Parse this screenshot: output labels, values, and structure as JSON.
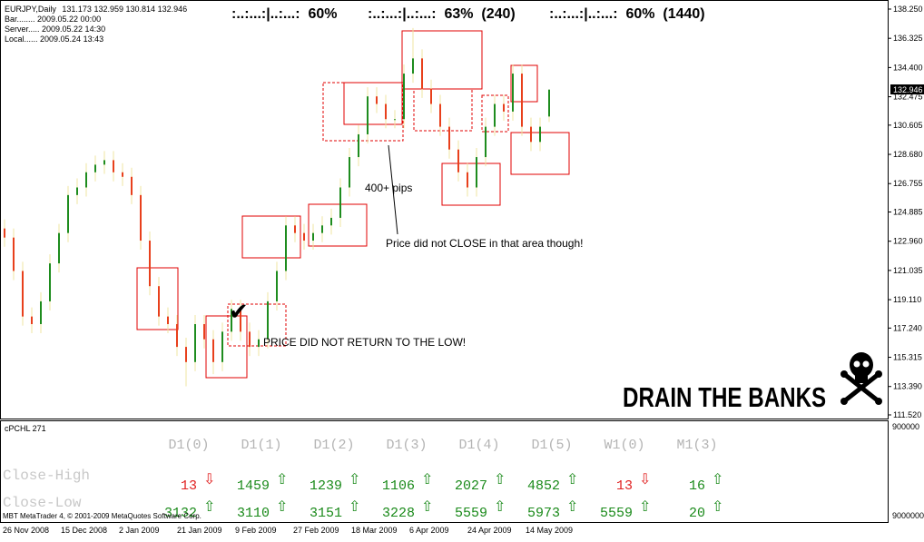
{
  "chart": {
    "type": "candlestick",
    "symbol": "EURJPY,Daily",
    "info": [
      "Bar........ 2009.05.22 00:00",
      "Server..... 2009.05.22 14:30",
      "Local...... 2009.05.24 13:43"
    ],
    "ratios": [
      ":..:...:|..:...:  60%",
      ":..:...:|..:...:  63%  (240)",
      ":..:...:|..:...:  60%  (1440)"
    ],
    "ylim": [
      111.52,
      138.25
    ],
    "yticks": [
      {
        "value": 138.25,
        "label": "138.250"
      },
      136.325,
      {
        "value": 134.4,
        "label": "134.400"
      },
      132.475,
      130.605,
      {
        "value": 128.68,
        "label": "128.680"
      },
      126.755,
      124.885,
      {
        "value": 122.96,
        "label": "122.960"
      },
      121.035,
      {
        "value": 119.11,
        "label": "119.110"
      },
      {
        "value": 117.24,
        "label": "117.240"
      },
      115.315,
      {
        "value": 113.39,
        "label": "113.390"
      },
      {
        "value": 111.52,
        "label": "111.520"
      }
    ],
    "up_color": "#1e8c1e",
    "down_color": "#e8401c",
    "wick_color": "#efe4a0",
    "candles": [
      [
        123.8,
        124.4,
        122.6,
        123.2
      ],
      [
        123.2,
        123.8,
        120.4,
        121
      ],
      [
        121,
        121.6,
        117.4,
        118
      ],
      [
        118,
        118.6,
        116.9,
        117.5
      ],
      [
        117.5,
        119.6,
        116.9,
        119
      ],
      [
        119,
        122.1,
        118.4,
        121.5
      ],
      [
        121.5,
        124.1,
        120.9,
        123.5
      ],
      [
        123.5,
        126.6,
        122.9,
        126
      ],
      [
        126,
        127.1,
        125.4,
        126.5
      ],
      [
        126.5,
        128.1,
        125.9,
        127.5
      ],
      [
        127.5,
        128.6,
        126.9,
        128
      ],
      [
        128,
        128.9,
        127.4,
        128.3
      ],
      [
        128.3,
        128.9,
        126.9,
        127.5
      ],
      [
        127.5,
        128.1,
        126.6,
        127.2
      ],
      [
        127.2,
        127.8,
        125.4,
        126
      ],
      [
        126,
        126.6,
        122.4,
        123
      ],
      [
        123,
        123.6,
        119.4,
        120
      ],
      [
        120,
        120.6,
        117.4,
        118
      ],
      [
        118,
        118.6,
        116.9,
        117.5
      ],
      [
        117.5,
        118.1,
        115.4,
        116
      ],
      [
        116,
        116.6,
        113.4,
        115
      ],
      [
        115,
        118.1,
        114.4,
        117.5
      ],
      [
        117.5,
        118.1,
        115.9,
        116.5
      ],
      [
        116.5,
        117.1,
        114.2,
        115
      ],
      [
        115,
        117.6,
        114.4,
        117
      ],
      [
        117,
        119.1,
        116.4,
        118.5
      ],
      [
        118.5,
        119.1,
        116.4,
        117
      ],
      [
        117,
        117.6,
        115.4,
        116
      ],
      [
        116,
        117.1,
        115.4,
        116.5
      ],
      [
        116.5,
        119.6,
        115.9,
        119
      ],
      [
        119,
        121.6,
        118.4,
        121
      ],
      [
        121,
        124.6,
        120.4,
        124
      ],
      [
        124,
        124.6,
        122.9,
        123.5
      ],
      [
        123.5,
        124.1,
        122.4,
        123
      ],
      [
        123,
        124.1,
        122.4,
        123.5
      ],
      [
        123.5,
        124.6,
        122.9,
        124
      ],
      [
        124,
        125.1,
        123.4,
        124.5
      ],
      [
        124.5,
        127.1,
        123.9,
        126.5
      ],
      [
        126.5,
        129.1,
        125.9,
        128.5
      ],
      [
        128.5,
        130.6,
        127.9,
        130
      ],
      [
        130,
        133.1,
        129.4,
        132.5
      ],
      [
        132.5,
        133.1,
        131.4,
        132
      ],
      [
        132,
        132.6,
        130.4,
        131
      ],
      [
        131,
        131.6,
        130.4,
        131
      ],
      [
        131,
        134.6,
        130.4,
        134
      ],
      [
        134,
        137,
        133.4,
        135
      ],
      [
        135,
        135.6,
        132.4,
        133
      ],
      [
        133,
        133.6,
        131.4,
        132
      ],
      [
        132,
        132.6,
        129.9,
        130.5
      ],
      [
        130.5,
        131.1,
        128.4,
        129
      ],
      [
        129,
        129.6,
        126.9,
        127.5
      ],
      [
        127.5,
        128.1,
        125.9,
        126.5
      ],
      [
        126.5,
        129.1,
        125.9,
        128.5
      ],
      [
        128.5,
        131.1,
        127.9,
        130.5
      ],
      [
        130.5,
        132.6,
        129.9,
        132
      ],
      [
        132,
        132.6,
        130.9,
        131.5
      ],
      [
        131.5,
        134.6,
        130.9,
        134
      ],
      [
        134,
        134.6,
        129.9,
        130.5
      ],
      [
        130.5,
        131.1,
        128.9,
        129.5
      ],
      [
        129.5,
        131.1,
        128.9,
        130.5
      ],
      [
        131.173,
        132.959,
        130.814,
        132.946
      ]
    ],
    "annotations": [
      "400+ pips",
      "Price did not CLOSE in that area though!",
      "✔",
      "PRICE DID NOT RETURN TO THE LOW!",
      "DRAIN THE BANKS"
    ],
    "x_labels": [
      "26 Nov 2008",
      "15 Dec 2008",
      "2 Jan 2009",
      "21 Jan 2009",
      "9 Feb 2009",
      "27 Feb 2009",
      "18 Mar 2009",
      "6 Apr 2009",
      "24 Apr 2009",
      "14 May 2009"
    ]
  },
  "indicator": {
    "name": "cPCHL 271",
    "axis_labels": [
      "900000",
      "9000000"
    ],
    "columns": [
      "D1(0)",
      "D1(1)",
      "D1(2)",
      "D1(3)",
      "D1(4)",
      "D1(5)",
      "W1(0)",
      "M1(3)"
    ],
    "rows": [
      {
        "label": "Close-High",
        "cells": [
          {
            "value": 13,
            "arrow": "⇩",
            "color": "#e02020"
          },
          {
            "value": 1459,
            "arrow": "⇧",
            "color": "#1a8a1a"
          },
          {
            "value": 1239,
            "arrow": "⇧",
            "color": "#1a8a1a"
          },
          {
            "value": 1106,
            "arrow": "⇧",
            "color": "#1a8a1a"
          },
          {
            "value": 2027,
            "arrow": "⇧",
            "color": "#1a8a1a"
          },
          {
            "value": 4852,
            "arrow": "⇧",
            "color": "#1a8a1a"
          },
          {
            "value": 13,
            "arrow": "⇩",
            "color": "#e02020"
          },
          {
            "value": 16,
            "arrow": "⇧",
            "color": "#1a8a1a"
          }
        ]
      },
      {
        "label": "Close-Low",
        "cells": [
          {
            "value": 3132,
            "arrow": "⇧",
            "color": "#1a8a1a"
          },
          {
            "value": 3110,
            "arrow": "⇧",
            "color": "#1a8a1a"
          },
          {
            "value": 3151,
            "arrow": "⇧",
            "color": "#1a8a1a"
          },
          {
            "value": 3228,
            "arrow": "⇧",
            "color": "#1a8a1a"
          },
          {
            "value": 5559,
            "arrow": "⇧",
            "color": "#1a8a1a"
          },
          {
            "value": 5973,
            "arrow": "⇧",
            "color": "#1a8a1a"
          },
          {
            "value": 5559,
            "arrow": "⇧",
            "color": "#1a8a1a"
          },
          {
            "value": 20,
            "arrow": "⇧",
            "color": "#1a8a1a"
          }
        ]
      }
    ]
  },
  "footer": "MBT MetaTrader 4, © 2001-2009 MetaQuotes Software Corp."
}
